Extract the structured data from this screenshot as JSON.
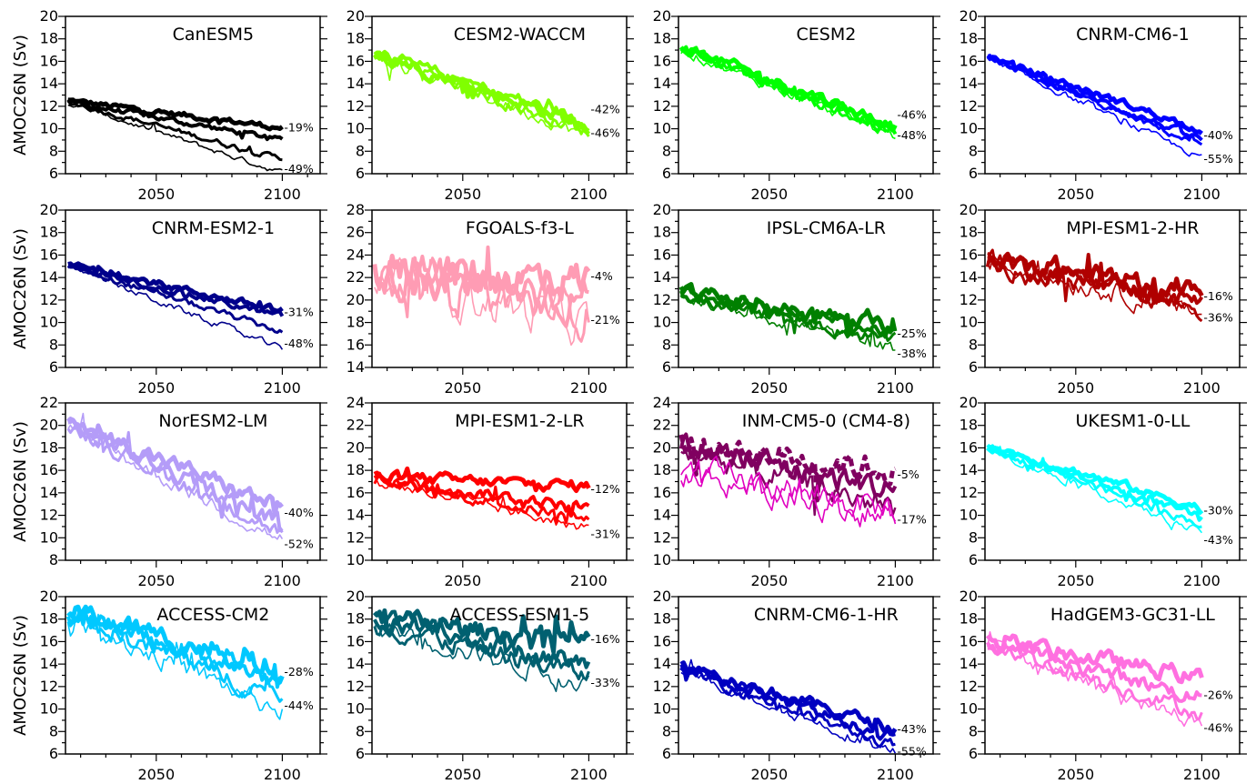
{
  "figure": {
    "ylabel": "AMOC26N (Sv)"
  },
  "chart_data": [
    {
      "type": "line",
      "title": "CanESM5",
      "color": "#000000",
      "xlim": [
        2014,
        2115
      ],
      "ylim": [
        6,
        20
      ],
      "yticks": [
        6,
        8,
        10,
        12,
        14,
        16,
        18,
        20
      ],
      "xticks": [
        2050,
        2100
      ],
      "series": [
        {
          "start": 12.5,
          "end": 10.1
        },
        {
          "start": 12.4,
          "end": 9.0
        },
        {
          "start": 12.4,
          "end": 7.3
        },
        {
          "start": 12.3,
          "end": 6.1
        }
      ],
      "labels": [
        {
          "text": "-19%",
          "y": 10.1
        },
        {
          "text": "-49%",
          "y": 6.4
        }
      ],
      "noise": 0.25
    },
    {
      "type": "line",
      "title": "CESM2-WACCM",
      "color": "#80FF00",
      "xlim": [
        2014,
        2115
      ],
      "ylim": [
        6,
        20
      ],
      "yticks": [
        6,
        8,
        10,
        12,
        14,
        16,
        18,
        20
      ],
      "xticks": [
        2050,
        2100
      ],
      "series": [
        {
          "start": 16.8,
          "end": 10.2
        },
        {
          "start": 16.7,
          "end": 10.6
        },
        {
          "start": 16.6,
          "end": 9.7
        },
        {
          "start": 16.5,
          "end": 9.4
        }
      ],
      "labels": [
        {
          "text": "-42%",
          "y": 11.7
        },
        {
          "text": "-46%",
          "y": 9.6
        }
      ],
      "noise": 0.55
    },
    {
      "type": "line",
      "title": "CESM2",
      "color": "#00FF00",
      "xlim": [
        2014,
        2115
      ],
      "ylim": [
        6,
        20
      ],
      "yticks": [
        6,
        8,
        10,
        12,
        14,
        16,
        18,
        20
      ],
      "xticks": [
        2050,
        2100
      ],
      "series": [
        {
          "start": 17.3,
          "end": 10.3
        },
        {
          "start": 17.2,
          "end": 9.9
        },
        {
          "start": 17.1,
          "end": 9.6
        },
        {
          "start": 17.0,
          "end": 9.3
        }
      ],
      "labels": [
        {
          "text": "-46%",
          "y": 11.2
        },
        {
          "text": "-48%",
          "y": 9.4
        }
      ],
      "noise": 0.45
    },
    {
      "type": "line",
      "title": "CNRM-CM6-1",
      "color": "#0000FF",
      "xlim": [
        2014,
        2115
      ],
      "ylim": [
        6,
        20
      ],
      "yticks": [
        6,
        8,
        10,
        12,
        14,
        16,
        18,
        20
      ],
      "xticks": [
        2050,
        2100
      ],
      "series": [
        {
          "start": 16.4,
          "end": 9.9
        },
        {
          "start": 16.3,
          "end": 9.0
        },
        {
          "start": 16.2,
          "end": 8.5
        },
        {
          "start": 16.2,
          "end": 7.4
        }
      ],
      "labels": [
        {
          "text": "-40%",
          "y": 9.4
        },
        {
          "text": "-55%",
          "y": 7.3
        }
      ],
      "noise": 0.3
    },
    {
      "type": "line",
      "title": "CNRM-ESM2-1",
      "color": "#00008B",
      "xlim": [
        2014,
        2115
      ],
      "ylim": [
        6,
        20
      ],
      "yticks": [
        6,
        8,
        10,
        12,
        14,
        16,
        18,
        20
      ],
      "xticks": [
        2050,
        2100
      ],
      "series": [
        {
          "start": 15.2,
          "end": 11.0
        },
        {
          "start": 15.1,
          "end": 10.5
        },
        {
          "start": 15.0,
          "end": 9.2
        },
        {
          "start": 15.0,
          "end": 7.6
        }
      ],
      "labels": [
        {
          "text": "-31%",
          "y": 10.9
        },
        {
          "text": "-48%",
          "y": 8.1
        }
      ],
      "noise": 0.3
    },
    {
      "type": "line",
      "title": "FGOALS-f3-L",
      "color": "#FF9CB4",
      "xlim": [
        2014,
        2115
      ],
      "ylim": [
        14,
        28
      ],
      "yticks": [
        14,
        16,
        18,
        20,
        22,
        24,
        26,
        28
      ],
      "xticks": [
        2050,
        2100
      ],
      "series": [
        {
          "start": 22.6,
          "end": 21.8
        },
        {
          "start": 22.4,
          "end": 20.2
        },
        {
          "start": 22.3,
          "end": 18.8
        },
        {
          "start": 22.2,
          "end": 17.8
        }
      ],
      "labels": [
        {
          "text": "-4%",
          "y": 22.1
        },
        {
          "text": "-21%",
          "y": 18.2
        }
      ],
      "noise": 1.8
    },
    {
      "type": "line",
      "title": "IPSL-CM6A-LR",
      "color": "#008000",
      "xlim": [
        2014,
        2115
      ],
      "ylim": [
        6,
        20
      ],
      "yticks": [
        6,
        8,
        10,
        12,
        14,
        16,
        18,
        20
      ],
      "xticks": [
        2050,
        2100
      ],
      "series": [
        {
          "start": 12.8,
          "end": 9.6
        },
        {
          "start": 12.6,
          "end": 9.0
        },
        {
          "start": 12.5,
          "end": 8.2
        },
        {
          "start": 12.4,
          "end": 7.6
        }
      ],
      "labels": [
        {
          "text": "-25%",
          "y": 9.0
        },
        {
          "text": "-38%",
          "y": 7.2
        }
      ],
      "noise": 0.6
    },
    {
      "type": "line",
      "title": "MPI-ESM1-2-HR",
      "color": "#B00000",
      "xlim": [
        2014,
        2115
      ],
      "ylim": [
        6,
        20
      ],
      "yticks": [
        6,
        8,
        10,
        12,
        14,
        16,
        18,
        20
      ],
      "xticks": [
        2050,
        2100
      ],
      "series": [
        {
          "start": 15.8,
          "end": 12.6
        },
        {
          "start": 15.6,
          "end": 11.8
        },
        {
          "start": 15.4,
          "end": 11.2
        },
        {
          "start": 15.3,
          "end": 10.9
        }
      ],
      "labels": [
        {
          "text": "-16%",
          "y": 12.3
        },
        {
          "text": "-36%",
          "y": 10.4
        }
      ],
      "noise": 0.9
    },
    {
      "type": "line",
      "title": "NorESM2-LM",
      "color": "#B49CF8",
      "xlim": [
        2014,
        2115
      ],
      "ylim": [
        8,
        22
      ],
      "yticks": [
        8,
        10,
        12,
        14,
        16,
        18,
        20,
        22
      ],
      "xticks": [
        2050,
        2100
      ],
      "series": [
        {
          "start": 20.4,
          "end": 12.6
        },
        {
          "start": 20.2,
          "end": 11.2
        },
        {
          "start": 20.0,
          "end": 10.4
        },
        {
          "start": 19.8,
          "end": 9.8
        }
      ],
      "labels": [
        {
          "text": "-40%",
          "y": 12.2
        },
        {
          "text": "-52%",
          "y": 9.4
        }
      ],
      "noise": 0.7
    },
    {
      "type": "line",
      "title": "MPI-ESM1-2-LR",
      "color": "#FF0000",
      "xlim": [
        2014,
        2115
      ],
      "ylim": [
        10,
        24
      ],
      "yticks": [
        10,
        12,
        14,
        16,
        18,
        20,
        22,
        24
      ],
      "xticks": [
        2050,
        2100
      ],
      "series": [
        {
          "start": 17.4,
          "end": 16.6
        },
        {
          "start": 17.3,
          "end": 14.6
        },
        {
          "start": 17.2,
          "end": 13.6
        },
        {
          "start": 17.1,
          "end": 12.8
        }
      ],
      "labels": [
        {
          "text": "-12%",
          "y": 16.3
        },
        {
          "text": "-31%",
          "y": 12.3
        }
      ],
      "noise": 0.5
    },
    {
      "type": "line",
      "title": "INM-CM5-0 (CM4-8)",
      "color": "#800060",
      "color2": "#E000C0",
      "xlim": [
        2014,
        2115
      ],
      "ylim": [
        10,
        24
      ],
      "yticks": [
        10,
        12,
        14,
        16,
        18,
        20,
        22,
        24
      ],
      "xticks": [
        2050,
        2100
      ],
      "series": [
        {
          "start": 20.4,
          "end": 18.0
        },
        {
          "start": 20.2,
          "end": 16.2
        },
        {
          "start": 19.8,
          "end": 14.6
        },
        {
          "start": 18.0,
          "end": 14.4
        },
        {
          "start": 17.8,
          "end": 13.6
        }
      ],
      "labels": [
        {
          "text": "-5%",
          "y": 17.6
        },
        {
          "text": "-17%",
          "y": 13.6
        }
      ],
      "noise": 1.2
    },
    {
      "type": "line",
      "title": "UKESM1-0-LL",
      "color": "#00FFFF",
      "xlim": [
        2014,
        2115
      ],
      "ylim": [
        6,
        20
      ],
      "yticks": [
        6,
        8,
        10,
        12,
        14,
        16,
        18,
        20
      ],
      "xticks": [
        2050,
        2100
      ],
      "series": [
        {
          "start": 16.2,
          "end": 10.6
        },
        {
          "start": 16.1,
          "end": 9.8
        },
        {
          "start": 16.0,
          "end": 9.2
        },
        {
          "start": 15.9,
          "end": 8.4
        }
      ],
      "labels": [
        {
          "text": "-30%",
          "y": 10.4
        },
        {
          "text": "-43%",
          "y": 7.8
        }
      ],
      "noise": 0.35
    },
    {
      "type": "line",
      "title": "ACCESS-CM2",
      "color": "#00C8FF",
      "xlim": [
        2014,
        2115
      ],
      "ylim": [
        6,
        20
      ],
      "yticks": [
        6,
        8,
        10,
        12,
        14,
        16,
        18,
        20
      ],
      "xticks": [
        2050,
        2100
      ],
      "series": [
        {
          "start": 18.8,
          "end": 13.4
        },
        {
          "start": 18.6,
          "end": 12.4
        },
        {
          "start": 18.4,
          "end": 11.0
        },
        {
          "start": 18.2,
          "end": 9.8
        }
      ],
      "labels": [
        {
          "text": "-28%",
          "y": 13.3
        },
        {
          "text": "-44%",
          "y": 10.3
        }
      ],
      "noise": 0.9
    },
    {
      "type": "line",
      "title": "ACCESS-ESM1-5",
      "color": "#006070",
      "xlim": [
        2014,
        2115
      ],
      "ylim": [
        6,
        20
      ],
      "yticks": [
        6,
        8,
        10,
        12,
        14,
        16,
        18,
        20
      ],
      "xticks": [
        2050,
        2100
      ],
      "series": [
        {
          "start": 18.0,
          "end": 16.0
        },
        {
          "start": 17.8,
          "end": 14.0
        },
        {
          "start": 17.6,
          "end": 13.0
        },
        {
          "start": 17.4,
          "end": 12.3
        }
      ],
      "labels": [
        {
          "text": "-16%",
          "y": 16.2
        },
        {
          "text": "-33%",
          "y": 12.3
        }
      ],
      "noise": 0.9
    },
    {
      "type": "line",
      "title": "CNRM-CM6-1-HR",
      "color": "#0000C0",
      "xlim": [
        2014,
        2115
      ],
      "ylim": [
        6,
        20
      ],
      "yticks": [
        6,
        8,
        10,
        12,
        14,
        16,
        18,
        20
      ],
      "xticks": [
        2050,
        2100
      ],
      "series": [
        {
          "start": 14.0,
          "end": 8.2
        },
        {
          "start": 13.8,
          "end": 7.4
        },
        {
          "start": 13.6,
          "end": 6.6
        },
        {
          "start": 13.5,
          "end": 6.1
        }
      ],
      "labels": [
        {
          "text": "-43%",
          "y": 8.2
        },
        {
          "text": "-55%",
          "y": 6.2
        }
      ],
      "noise": 0.5
    },
    {
      "type": "line",
      "title": "HadGEM3-GC31-LL",
      "color": "#FF70E0",
      "xlim": [
        2014,
        2115
      ],
      "ylim": [
        6,
        20
      ],
      "yticks": [
        6,
        8,
        10,
        12,
        14,
        16,
        18,
        20
      ],
      "xticks": [
        2050,
        2100
      ],
      "series": [
        {
          "start": 16.2,
          "end": 12.8
        },
        {
          "start": 16.0,
          "end": 11.0
        },
        {
          "start": 15.8,
          "end": 9.6
        },
        {
          "start": 15.8,
          "end": 8.6
        }
      ],
      "labels": [
        {
          "text": "-26%",
          "y": 11.2
        },
        {
          "text": "-46%",
          "y": 8.3
        }
      ],
      "noise": 0.7
    }
  ]
}
